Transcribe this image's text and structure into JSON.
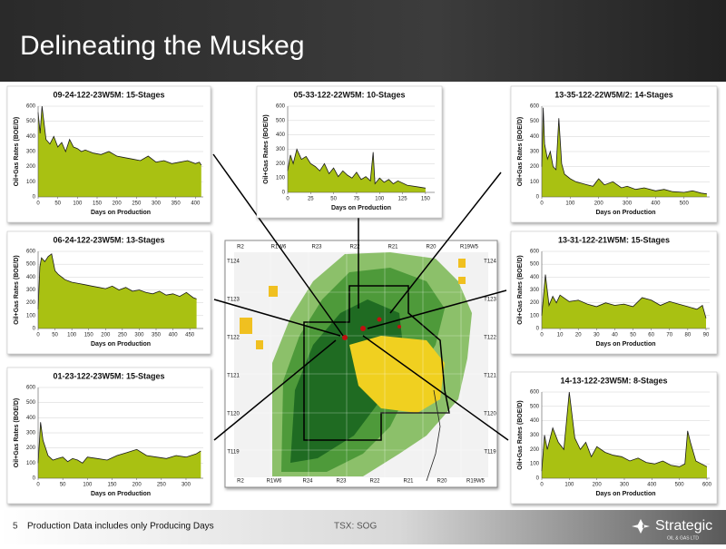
{
  "slide": {
    "title": "Delineating the Muskeg",
    "page_number": "5",
    "footnote": "Production Data includes only Producing Days",
    "ticker": "TSX: SOG",
    "logo_name": "Strategic",
    "logo_tagline": "OIL & GAS LTD"
  },
  "map": {
    "top_labels": [
      "R2",
      "R1W6",
      "R23",
      "R22",
      "R21",
      "R20",
      "R19W5"
    ],
    "bottom_labels": [
      "R2",
      "R1W6",
      "R24",
      "R23",
      "R22",
      "R21",
      "R20",
      "R19W5"
    ],
    "left_labels": [
      "T124",
      "T123",
      "T122",
      "T121",
      "T120",
      "T119"
    ],
    "right_labels": [
      "T124",
      "T123",
      "T122",
      "T121",
      "T120",
      "T119"
    ]
  },
  "chart_data": [
    {
      "type": "area",
      "title": "09-24-122-23W5M: 15-Stages",
      "x_label": "Days on Production",
      "y_label": "Oil+Gas Rates (BOE/D)",
      "color": "#a9c112",
      "line_color": "#1a1a1a",
      "grid": true,
      "x": [
        0,
        5,
        10,
        20,
        30,
        40,
        50,
        60,
        70,
        80,
        90,
        100,
        110,
        120,
        140,
        160,
        180,
        200,
        220,
        240,
        260,
        280,
        300,
        320,
        340,
        360,
        380,
        400,
        410,
        415
      ],
      "values": [
        560,
        420,
        600,
        380,
        350,
        400,
        330,
        360,
        300,
        380,
        330,
        320,
        300,
        310,
        290,
        280,
        300,
        270,
        260,
        250,
        240,
        270,
        230,
        240,
        220,
        230,
        240,
        220,
        230,
        210
      ],
      "xlim": [
        0,
        420
      ],
      "xticks": [
        0,
        50,
        100,
        150,
        200,
        250,
        300,
        350,
        400
      ],
      "ylim": [
        0,
        600
      ],
      "yticks": [
        0,
        100,
        200,
        300,
        400,
        500,
        600
      ]
    },
    {
      "type": "area",
      "title": "05-33-122-22W5M: 10-Stages",
      "x_label": "Days on Production",
      "y_label": "Oil+Gas Rates (BOE/D)",
      "color": "#a9c112",
      "line_color": "#1a1a1a",
      "grid": true,
      "x": [
        0,
        3,
        6,
        10,
        15,
        20,
        25,
        30,
        35,
        40,
        45,
        50,
        55,
        60,
        65,
        70,
        75,
        80,
        85,
        90,
        93,
        95,
        100,
        105,
        110,
        115,
        120,
        130,
        140,
        150
      ],
      "values": [
        150,
        260,
        200,
        300,
        230,
        250,
        200,
        180,
        150,
        200,
        130,
        170,
        110,
        150,
        120,
        100,
        140,
        90,
        110,
        80,
        280,
        60,
        100,
        70,
        90,
        60,
        80,
        50,
        40,
        30
      ],
      "xlim": [
        0,
        160
      ],
      "xticks": [
        0,
        25,
        50,
        75,
        100,
        125,
        150
      ],
      "ylim": [
        0,
        600
      ],
      "yticks": [
        0,
        100,
        200,
        300,
        400,
        500,
        600
      ]
    },
    {
      "type": "area",
      "title": "13-35-122-22W5M/2: 14-Stages",
      "x_label": "Days on Production",
      "y_label": "Oil+Gas Rates (BOE/D)",
      "color": "#a9c112",
      "line_color": "#1a1a1a",
      "grid": true,
      "x": [
        0,
        5,
        10,
        20,
        30,
        40,
        50,
        60,
        70,
        80,
        100,
        120,
        140,
        160,
        180,
        200,
        220,
        250,
        280,
        300,
        330,
        360,
        400,
        430,
        460,
        500,
        530,
        560,
        580
      ],
      "values": [
        200,
        590,
        350,
        250,
        300,
        200,
        180,
        520,
        220,
        150,
        120,
        100,
        90,
        80,
        70,
        120,
        80,
        100,
        60,
        70,
        50,
        60,
        40,
        50,
        35,
        30,
        40,
        25,
        20
      ],
      "xlim": [
        0,
        590
      ],
      "xticks": [
        0,
        100,
        200,
        300,
        400,
        500
      ],
      "ylim": [
        0,
        600
      ],
      "yticks": [
        0,
        100,
        200,
        300,
        400,
        500,
        600
      ]
    },
    {
      "type": "area",
      "title": "06-24-122-23W5M: 13-Stages",
      "x_label": "Days on Production",
      "y_label": "Oil+Gas Rates (BOE/D)",
      "color": "#a9c112",
      "line_color": "#1a1a1a",
      "grid": true,
      "x": [
        0,
        5,
        10,
        20,
        30,
        40,
        50,
        60,
        70,
        80,
        90,
        100,
        120,
        140,
        160,
        180,
        200,
        220,
        240,
        260,
        280,
        300,
        320,
        340,
        360,
        380,
        400,
        420,
        440,
        460,
        470
      ],
      "values": [
        150,
        480,
        550,
        520,
        560,
        580,
        450,
        420,
        400,
        380,
        370,
        360,
        350,
        340,
        330,
        320,
        310,
        330,
        300,
        320,
        290,
        300,
        280,
        270,
        290,
        260,
        270,
        250,
        280,
        240,
        230
      ],
      "xlim": [
        0,
        490
      ],
      "xticks": [
        0,
        50,
        100,
        150,
        200,
        250,
        300,
        350,
        400,
        450
      ],
      "ylim": [
        0,
        600
      ],
      "yticks": [
        0,
        100,
        200,
        300,
        400,
        500,
        600
      ]
    },
    {
      "type": "area",
      "title": "13-31-122-21W5M: 15-Stages",
      "x_label": "Days on Production",
      "y_label": "Oil+Gas Rates (BOE/D)",
      "color": "#a9c112",
      "line_color": "#1a1a1a",
      "grid": true,
      "x": [
        0,
        2,
        4,
        6,
        8,
        10,
        15,
        20,
        25,
        30,
        35,
        40,
        45,
        50,
        55,
        60,
        65,
        70,
        75,
        80,
        85,
        88,
        90
      ],
      "values": [
        100,
        420,
        180,
        250,
        200,
        260,
        210,
        220,
        190,
        170,
        200,
        180,
        190,
        170,
        240,
        220,
        180,
        210,
        190,
        170,
        150,
        180,
        80
      ],
      "xlim": [
        0,
        92
      ],
      "xticks": [
        0,
        10,
        20,
        30,
        40,
        50,
        60,
        70,
        80,
        90
      ],
      "ylim": [
        0,
        600
      ],
      "yticks": [
        0,
        100,
        200,
        300,
        400,
        500,
        600
      ]
    },
    {
      "type": "area",
      "title": "01-23-122-23W5M: 15-Stages",
      "x_label": "Days on Production",
      "y_label": "Oil+Gas Rates (BOE/D)",
      "color": "#a9c112",
      "line_color": "#1a1a1a",
      "grid": true,
      "x": [
        0,
        5,
        10,
        20,
        30,
        40,
        50,
        60,
        70,
        80,
        90,
        100,
        120,
        140,
        160,
        180,
        200,
        220,
        240,
        260,
        280,
        300,
        320,
        330
      ],
      "values": [
        100,
        370,
        250,
        150,
        120,
        130,
        140,
        110,
        130,
        120,
        100,
        140,
        130,
        120,
        150,
        170,
        190,
        150,
        140,
        130,
        150,
        140,
        160,
        180
      ],
      "xlim": [
        0,
        335
      ],
      "xticks": [
        0,
        50,
        100,
        150,
        200,
        250,
        300
      ],
      "ylim": [
        0,
        600
      ],
      "yticks": [
        0,
        100,
        200,
        300,
        400,
        500,
        600
      ]
    },
    {
      "type": "area",
      "title": "14-13-122-23W5M: 8-Stages",
      "x_label": "Days on Production",
      "y_label": "Oil+Gas Rates (BOE/D)",
      "color": "#a9c112",
      "line_color": "#1a1a1a",
      "grid": true,
      "x": [
        0,
        10,
        20,
        40,
        60,
        80,
        100,
        120,
        140,
        160,
        180,
        200,
        230,
        260,
        290,
        320,
        350,
        380,
        410,
        440,
        470,
        500,
        520,
        530,
        540,
        560,
        580,
        600
      ],
      "values": [
        50,
        300,
        200,
        350,
        250,
        200,
        600,
        280,
        200,
        250,
        150,
        220,
        180,
        160,
        150,
        120,
        140,
        110,
        100,
        120,
        90,
        80,
        100,
        330,
        250,
        120,
        100,
        80
      ],
      "xlim": [
        0,
        610
      ],
      "xticks": [
        0,
        100,
        200,
        300,
        400,
        500,
        600
      ],
      "ylim": [
        0,
        600
      ],
      "yticks": [
        0,
        100,
        200,
        300,
        400,
        500,
        600
      ]
    }
  ]
}
